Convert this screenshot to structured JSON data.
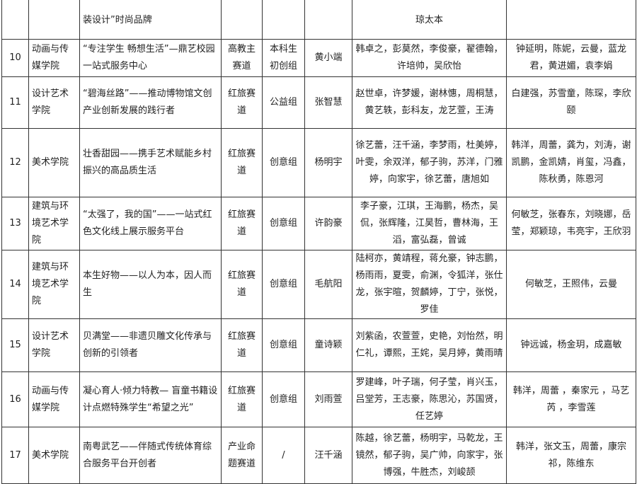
{
  "header": {
    "project_partial": "装设计”时尚品牌",
    "students_partial": "琼太本"
  },
  "rows": [
    {
      "no": "10",
      "college": "动画与传媒学院",
      "project": "“专注学生 畅想生活”—鼎艺校园一站式服务中心",
      "track": "高教主赛道",
      "group": "本科生初创组",
      "leader": "黄小端",
      "members": "韩卓之，彭莫然，李俊豪，翟德翰，许培帅，吴欣怡",
      "mentors": "钟延明，陈妮，云曼，蓝龙君，黄进媚，袁李娟"
    },
    {
      "no": "11",
      "college": "设计艺术学院",
      "project": "“碧海丝路”——推动博物馆文创产业创新发展的践行者",
      "track": "红旅赛道",
      "group": "公益组",
      "leader": "张智慧",
      "members": "赵世卓，许梦媛，谢林憓，周桐慧，黄艺轶，彭科友，龙艺萱，王涛",
      "mentors": "白建强，苏雪童，陈琛，李欣颐"
    },
    {
      "no": "12",
      "college": "美术学院",
      "project": "壮香甜园——携手艺术赋能乡村振兴的高品质生活",
      "track": "红旅赛道",
      "group": "创意组",
      "leader": "杨明宇",
      "members": "徐艺蕾，汪千涵，李梦雨，杜美婷，叶雯，余双洋，郁子驹，苏洋，门雅婷，向家宇，徐艺蕾，唐旭如",
      "mentors": "韩洋，周蕾，龚为，刘涛，谢凯鹏，金凯婧，肖玺，冯鑫，陈秋勇，陈恩河"
    },
    {
      "no": "13",
      "college": "建筑与环境艺术学院",
      "project": "“太强了，我的国”——一站式红色文化线上展示服务平台",
      "track": "红旅赛道",
      "group": "创意组",
      "leader": "许韵豪",
      "members": "李子豪，江琪，王海鹏，杨杰，吴侃，张辉隆，江昊哲，曹林海，王滔，富弘磊，曾诚",
      "mentors": "何敏芝，张春东，刘晓娜，岳莹，郑颖琼，韦亮宇，王欣羽"
    },
    {
      "no": "14",
      "college": "建筑与环境艺术学院",
      "project": "本生好物——以人为本，因人而生",
      "track": "红旅赛道",
      "group": "创意组",
      "leader": "毛航阳",
      "members": "陆柯亦，黄靖程，蒋允豪，钟志鹏，杨雨雨，夏雯，俞渊，令狐洋，张仕龙，张宇暄，贺麟婷，丁宁，张悦，罗佳",
      "mentors": "何敏芝，王照伟，云曼"
    },
    {
      "no": "15",
      "college": "设计艺术学院",
      "project": "贝满堂——非遗贝雕文化传承与创新的引领者",
      "track": "红旅赛道",
      "group": "创意组",
      "leader": "童诗颖",
      "members": "刘紫函，农萱萱，史艳，刘怡然，明仁礼，谭熙，王姹，吴月婷，黄雨晴",
      "mentors": "钟远诚，杨金玥，成嘉敏"
    },
    {
      "no": "16",
      "college": "动画与传媒学院",
      "project": "凝心育人·倾力特教— 盲童书籍设计点燃特殊学生“希望之光”",
      "track": "红旅赛道",
      "group": "创意组",
      "leader": "刘雨萱",
      "members": "罗建峰，叶子瑞，何子莹，肖兴玉，吕堂芳，王志豪，陈思沁，苏国贤，任艺婷",
      "mentors": "韩洋，周蕾 ，秦家元 ，马艺芮 ，李雪莲"
    },
    {
      "no": "17",
      "college": "美术学院",
      "project": "南粤武艺——伴随式传统体育综合服务平台开创者",
      "track": "产业命题赛道",
      "group": "/",
      "leader": "汪千涵",
      "members": "陈越，徐艺蕾，杨明宇，马乾龙，王镜然，郁子驹，吴广帅，向家宇，张博强，牛胜杰，刘峻颉",
      "mentors": "韩洋，张文玉，周蕾，康宗祁，陈维东"
    }
  ]
}
